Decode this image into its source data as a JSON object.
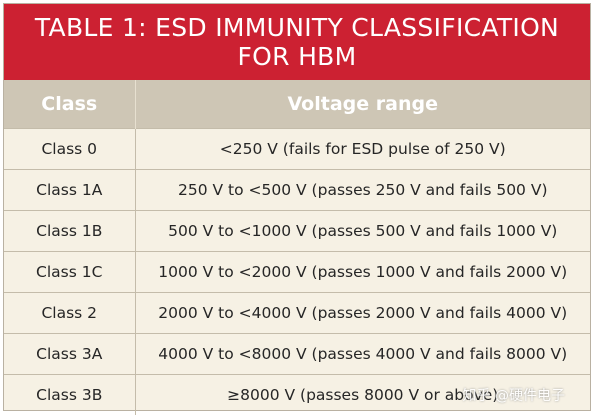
{
  "title": {
    "line1": "TABLE 1: ESD IMMUNITY CLASSIFICATION",
    "line2": "FOR HBM"
  },
  "columns": [
    "Class",
    "Voltage range"
  ],
  "rows": [
    [
      "Class 0",
      "<250 V (fails for ESD pulse of 250 V)"
    ],
    [
      "Class 1A",
      "250 V to <500 V (passes 250 V and fails 500 V)"
    ],
    [
      "Class 1B",
      "500 V to <1000 V (passes 500 V and fails 1000 V)"
    ],
    [
      "Class 1C",
      "1000 V to <2000 V (passes 1000 V and fails 2000 V)"
    ],
    [
      "Class 2",
      "2000 V to <4000 V (passes 2000 V and fails 4000 V)"
    ],
    [
      "Class 3A",
      "4000 V to <8000 V (passes 4000 V and fails 8000 V)"
    ],
    [
      "Class 3B",
      "≥8000 V (passes 8000 V or above)"
    ]
  ],
  "watermark": "知乎 @硬件电子",
  "colors": {
    "title_bg": "#cc2132",
    "header_bg": "#cec6b5",
    "body_bg": "#f6f1e4"
  }
}
